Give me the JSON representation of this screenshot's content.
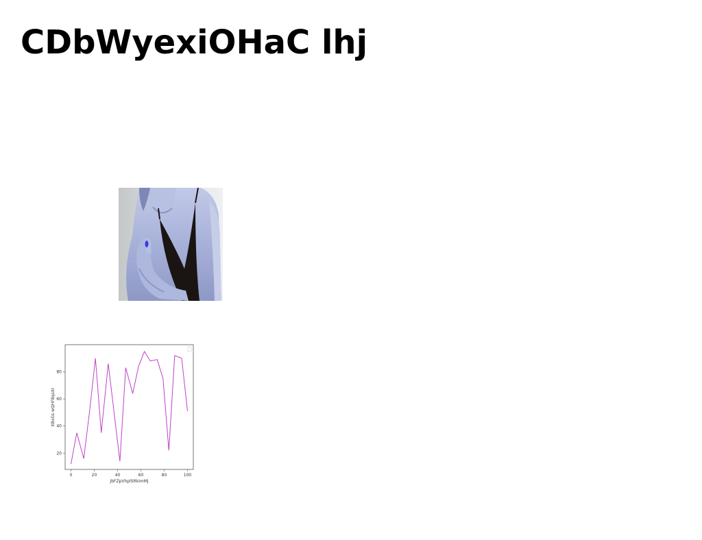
{
  "page": {
    "title": "CDbWyexiOHaC lhj"
  },
  "photo": {
    "subject": "woman-photo"
  },
  "chart_data": {
    "type": "line",
    "xlabel": "JbFZpVhplSRkimMj",
    "ylabel": "KBxGs wQHFBqsXr",
    "xlim": [
      -5,
      105
    ],
    "ylim": [
      8,
      100
    ],
    "xticks": [
      0,
      20,
      40,
      60,
      80,
      100
    ],
    "yticks": [
      20,
      40,
      60,
      80
    ],
    "grid": false,
    "legend": "top-right",
    "series": [
      {
        "color": "#c040c8",
        "x": [
          0,
          5,
          11,
          16,
          21,
          26,
          32,
          37,
          42,
          47,
          53,
          58,
          63,
          68,
          74,
          79,
          84,
          89,
          95,
          100
        ],
        "y": [
          12,
          35,
          16,
          51,
          90,
          35,
          86,
          50,
          14,
          83,
          64,
          84,
          95,
          88,
          89,
          75,
          22,
          92,
          90,
          51
        ]
      }
    ]
  }
}
